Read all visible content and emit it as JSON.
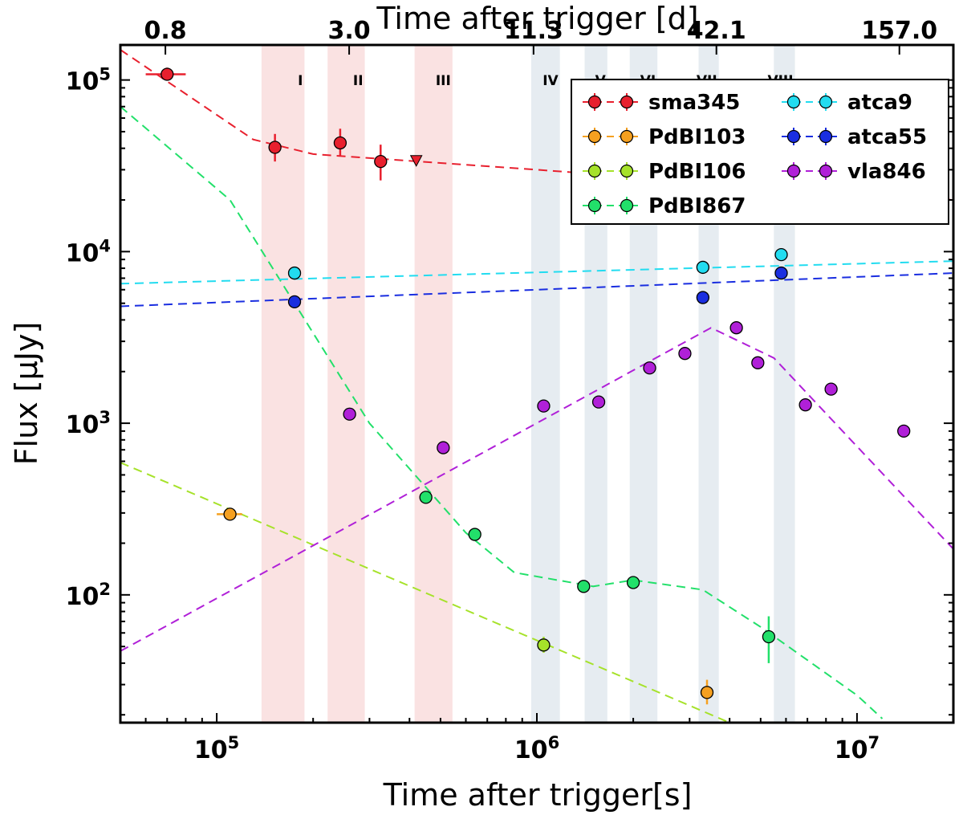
{
  "colors": {
    "sma345": "#e8202e",
    "PdBI103": "#f5a020",
    "PdBI106": "#a6e22a",
    "PdBI867": "#22e06a",
    "atca9": "#22dcf0",
    "atca55": "#1a2ee0",
    "vla846": "#b020d8",
    "red_band": "#f8d8d8",
    "grey_band": "#dde6ec"
  },
  "chart_data": {
    "type": "scatter",
    "xscale": "log",
    "yscale": "log",
    "xlim": [
      50000,
      20000000
    ],
    "ylim": [
      18,
      160000
    ],
    "xlabel": "Time after trigger[s]",
    "ylabel": "Flux [μJy]",
    "top_xlabel": "Time after trigger [d]",
    "grid": false,
    "legend_position": "upper-right",
    "x_tick_labels": [
      {
        "value": 100000,
        "label": "10",
        "exp": "5"
      },
      {
        "value": 1000000,
        "label": "10",
        "exp": "6"
      },
      {
        "value": 10000000,
        "label": "10",
        "exp": "7"
      }
    ],
    "y_tick_labels": [
      {
        "value": 100,
        "label": "10",
        "exp": "2"
      },
      {
        "value": 1000,
        "label": "10",
        "exp": "3"
      },
      {
        "value": 10000,
        "label": "10",
        "exp": "4"
      },
      {
        "value": 100000,
        "label": "10",
        "exp": "5"
      }
    ],
    "top_tick_labels": [
      {
        "days": 0.8,
        "label": "0.8"
      },
      {
        "days": 3.0,
        "label": "3.0"
      },
      {
        "days": 11.3,
        "label": "11.3"
      },
      {
        "days": 42.1,
        "label": "42.1"
      },
      {
        "days": 157.0,
        "label": "157.0"
      }
    ],
    "epochs": [
      {
        "label": "I",
        "range": [
          138000,
          188000
        ],
        "band": "red"
      },
      {
        "label": "II",
        "range": [
          222000,
          290000
        ],
        "band": "red"
      },
      {
        "label": "III",
        "range": [
          415000,
          545000
        ],
        "band": "red"
      },
      {
        "label": "IV",
        "range": [
          960000,
          1180000
        ],
        "band": "grey"
      },
      {
        "label": "V",
        "range": [
          1410000,
          1660000
        ],
        "band": "grey"
      },
      {
        "label": "VI",
        "range": [
          1950000,
          2380000
        ],
        "band": "grey"
      },
      {
        "label": "VII",
        "range": [
          3200000,
          3700000
        ],
        "band": "grey"
      },
      {
        "label": "VIII",
        "range": [
          5500000,
          6400000
        ],
        "band": "grey"
      }
    ],
    "series": [
      {
        "name": "sma345",
        "color_key": "sma345",
        "points": [
          {
            "x": 70000,
            "y": 108000,
            "xerr": [
              60000,
              80000
            ],
            "yerr": [
              99000,
              118000
            ]
          },
          {
            "x": 152000,
            "y": 40500,
            "yerr": [
              33500,
              48500
            ]
          },
          {
            "x": 243000,
            "y": 43000,
            "yerr": [
              36000,
              52000
            ]
          },
          {
            "x": 325000,
            "y": 33500,
            "yerr": [
              26000,
              42000
            ]
          }
        ],
        "upper_limits": [
          {
            "x": 420000,
            "y": 34000
          }
        ],
        "model": [
          [
            50000,
            150000
          ],
          [
            130000,
            45000
          ],
          [
            200000,
            37000
          ],
          [
            1000000,
            30000
          ],
          [
            20000000,
            20000
          ]
        ]
      },
      {
        "name": "PdBI103",
        "color_key": "PdBI103",
        "points": [
          {
            "x": 110000,
            "y": 295,
            "xerr": [
              100000,
              120000
            ]
          },
          {
            "x": 3400000,
            "y": 27,
            "yerr": [
              23,
              32
            ]
          }
        ],
        "model": []
      },
      {
        "name": "PdBI106",
        "color_key": "PdBI106",
        "points": [
          {
            "x": 1050000,
            "y": 51,
            "yerr": [
              46,
              57
            ]
          }
        ],
        "model": [
          [
            50000,
            590
          ],
          [
            4000000,
            18
          ]
        ]
      },
      {
        "name": "PdBI867",
        "color_key": "PdBI867",
        "points": [
          {
            "x": 450000,
            "y": 370
          },
          {
            "x": 640000,
            "y": 225
          },
          {
            "x": 1400000,
            "y": 112
          },
          {
            "x": 2000000,
            "y": 118
          },
          {
            "x": 5300000,
            "y": 57,
            "yerr": [
              40,
              75
            ]
          }
        ],
        "model": [
          [
            50000,
            70000
          ],
          [
            110000,
            20000
          ],
          [
            300000,
            1000
          ],
          [
            600000,
            230
          ],
          [
            850000,
            135
          ],
          [
            1500000,
            112
          ],
          [
            2000000,
            122
          ],
          [
            3300000,
            107
          ],
          [
            5000000,
            65
          ],
          [
            10000000,
            26
          ],
          [
            12000000,
            19
          ]
        ]
      },
      {
        "name": "atca9",
        "color_key": "atca9",
        "points": [
          {
            "x": 175000,
            "y": 7500
          },
          {
            "x": 3300000,
            "y": 8100
          },
          {
            "x": 5800000,
            "y": 9600
          }
        ],
        "model": [
          [
            50000,
            6500
          ],
          [
            20000000,
            8800
          ]
        ]
      },
      {
        "name": "atca55",
        "color_key": "atca55",
        "points": [
          {
            "x": 175000,
            "y": 5100
          },
          {
            "x": 3300000,
            "y": 5400
          },
          {
            "x": 5800000,
            "y": 7500
          }
        ],
        "model": [
          [
            50000,
            4800
          ],
          [
            20000000,
            7500
          ]
        ]
      },
      {
        "name": "vla846",
        "color_key": "vla846",
        "points": [
          {
            "x": 260000,
            "y": 1130
          },
          {
            "x": 510000,
            "y": 720
          },
          {
            "x": 1050000,
            "y": 1260
          },
          {
            "x": 1560000,
            "y": 1330
          },
          {
            "x": 2250000,
            "y": 2100
          },
          {
            "x": 2900000,
            "y": 2550
          },
          {
            "x": 4200000,
            "y": 3600
          },
          {
            "x": 4900000,
            "y": 2250
          },
          {
            "x": 6900000,
            "y": 1280
          },
          {
            "x": 8300000,
            "y": 1580
          },
          {
            "x": 14000000,
            "y": 900
          }
        ],
        "model": [
          [
            50000,
            47
          ],
          [
            3500000,
            3600
          ],
          [
            5500000,
            2400
          ],
          [
            20000000,
            185
          ]
        ]
      }
    ],
    "legend": {
      "columns": [
        [
          "sma345",
          "PdBI103",
          "PdBI106",
          "PdBI867"
        ],
        [
          "atca9",
          "atca55",
          "vla846"
        ]
      ]
    }
  }
}
